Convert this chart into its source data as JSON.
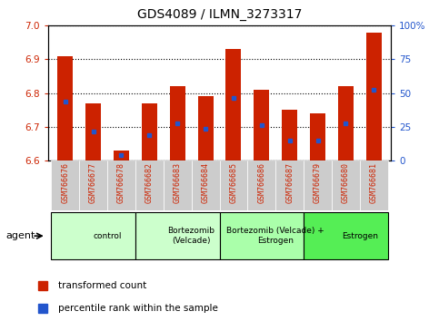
{
  "title": "GDS4089 / ILMN_3273317",
  "samples": [
    "GSM766676",
    "GSM766677",
    "GSM766678",
    "GSM766682",
    "GSM766683",
    "GSM766684",
    "GSM766685",
    "GSM766686",
    "GSM766687",
    "GSM766679",
    "GSM766680",
    "GSM766681"
  ],
  "bar_values": [
    6.91,
    6.77,
    6.63,
    6.77,
    6.82,
    6.79,
    6.93,
    6.81,
    6.75,
    6.74,
    6.82,
    6.98
  ],
  "percentile_values": [
    6.775,
    6.685,
    6.615,
    6.675,
    6.71,
    6.695,
    6.785,
    6.705,
    6.658,
    6.658,
    6.71,
    6.81
  ],
  "ylim_left": [
    6.6,
    7.0
  ],
  "ylim_right": [
    0,
    100
  ],
  "yticks_left": [
    6.6,
    6.7,
    6.8,
    6.9,
    7.0
  ],
  "yticks_right": [
    0,
    25,
    50,
    75,
    100
  ],
  "ytick_labels_right": [
    "0",
    "25",
    "50",
    "75",
    "100%"
  ],
  "bar_color": "#cc2200",
  "percentile_color": "#2255cc",
  "bar_base": 6.6,
  "groups": [
    {
      "label": "control",
      "start": 0,
      "end": 3
    },
    {
      "label": "Bortezomib\n(Velcade)",
      "start": 3,
      "end": 6
    },
    {
      "label": "Bortezomib (Velcade) +\nEstrogen",
      "start": 6,
      "end": 9
    },
    {
      "label": "Estrogen",
      "start": 9,
      "end": 12
    }
  ],
  "group_colors": [
    "#ccffcc",
    "#ccffcc",
    "#aaffaa",
    "#55ee55"
  ],
  "legend_red_label": "transformed count",
  "legend_blue_label": "percentile rank within the sample",
  "agent_label": "agent"
}
